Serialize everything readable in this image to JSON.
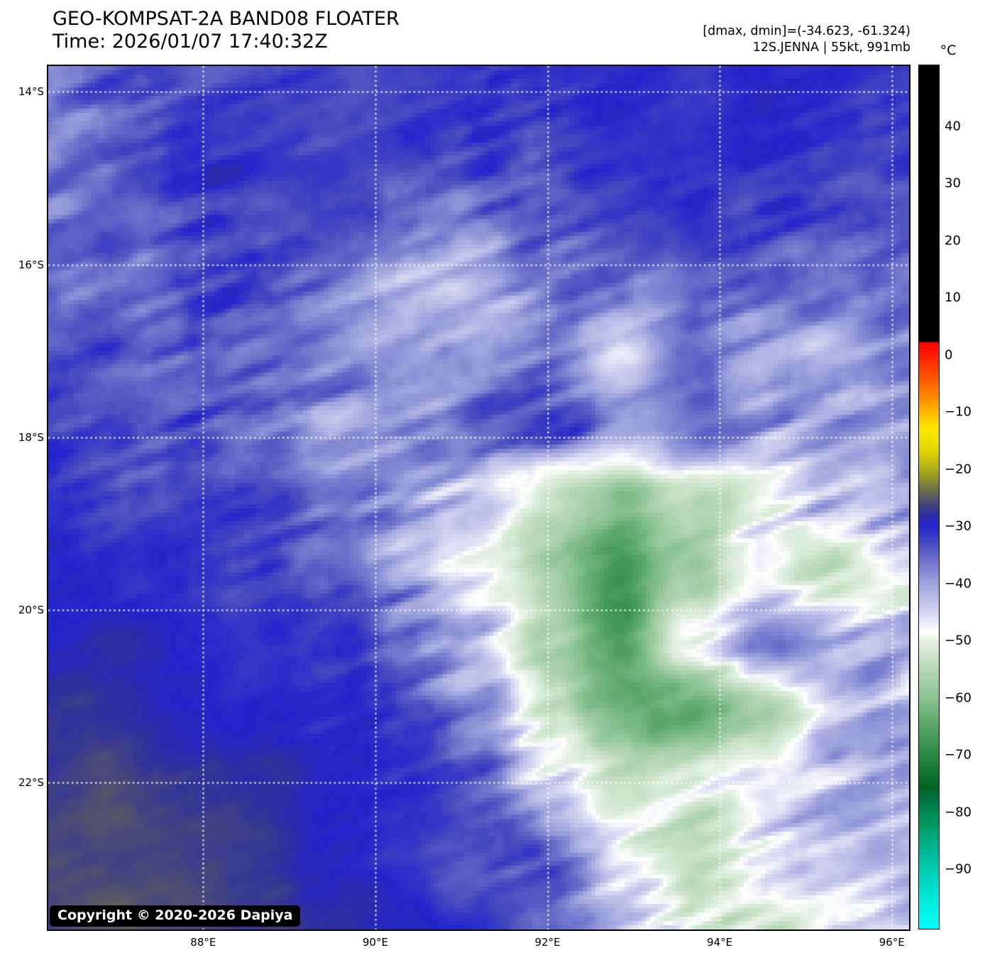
{
  "header": {
    "title": "GEO-KOMPSAT-2A BAND08 FLOATER",
    "time": "Time: 2026/01/07 17:40:32Z",
    "dmax_dmin": "[dmax, dmin]=(-34.623, -61.324)",
    "storm": "12S.JENNA | 55kt, 991mb"
  },
  "copyright": "Copyright © 2020-2026 Dapiya",
  "axes": {
    "lat_range_deg_s": [
      13.7,
      23.7
    ],
    "lon_range_deg_e": [
      86.2,
      96.2
    ],
    "lat_ticks": [
      {
        "deg": 14,
        "label": "14°S"
      },
      {
        "deg": 16,
        "label": "16°S"
      },
      {
        "deg": 18,
        "label": "18°S"
      },
      {
        "deg": 20,
        "label": "20°S"
      },
      {
        "deg": 22,
        "label": "22°S"
      }
    ],
    "lon_ticks": [
      {
        "deg": 88,
        "label": "88°E"
      },
      {
        "deg": 90,
        "label": "90°E"
      },
      {
        "deg": 92,
        "label": "92°E"
      },
      {
        "deg": 94,
        "label": "94°E"
      },
      {
        "deg": 96,
        "label": "96°E"
      }
    ],
    "gridline_color": "#ffffff"
  },
  "colorbar": {
    "unit": "°C",
    "max": 50.5,
    "min": -100.5,
    "ticks": [
      {
        "value": 40,
        "label": "40"
      },
      {
        "value": 30,
        "label": "30"
      },
      {
        "value": 20,
        "label": "20"
      },
      {
        "value": 10,
        "label": "10"
      },
      {
        "value": 0,
        "label": "0"
      },
      {
        "value": -10,
        "label": "−10"
      },
      {
        "value": -20,
        "label": "−20"
      },
      {
        "value": -30,
        "label": "−30"
      },
      {
        "value": -40,
        "label": "−40"
      },
      {
        "value": -50,
        "label": "−50"
      },
      {
        "value": -60,
        "label": "−60"
      },
      {
        "value": -70,
        "label": "−70"
      },
      {
        "value": -80,
        "label": "−80"
      },
      {
        "value": -90,
        "label": "−90"
      }
    ],
    "stops": [
      [
        50.5,
        "#000000"
      ],
      [
        2.2,
        "#000000"
      ],
      [
        2.0,
        "#ff0000"
      ],
      [
        -3,
        "#ff4400"
      ],
      [
        -8,
        "#ff9000"
      ],
      [
        -13,
        "#ffe800"
      ],
      [
        -17,
        "#ded600"
      ],
      [
        -21,
        "#a0a01e"
      ],
      [
        -24,
        "#6a6a50"
      ],
      [
        -26,
        "#4a4a78"
      ],
      [
        -28,
        "#2e2ea0"
      ],
      [
        -30,
        "#2424cd"
      ],
      [
        -33,
        "#464ac0"
      ],
      [
        -36,
        "#6c70ca"
      ],
      [
        -40,
        "#9da1dc"
      ],
      [
        -44,
        "#c6c8ec"
      ],
      [
        -47,
        "#e9eaf7"
      ],
      [
        -48.5,
        "#ffffff"
      ],
      [
        -50,
        "#e7f2e7"
      ],
      [
        -55,
        "#b8d8b8"
      ],
      [
        -60,
        "#8cc394"
      ],
      [
        -65,
        "#57a567"
      ],
      [
        -70,
        "#2b8942"
      ],
      [
        -74,
        "#0c6f2c"
      ],
      [
        -76,
        "#016426"
      ],
      [
        -78,
        "#007548"
      ],
      [
        -82,
        "#00975f"
      ],
      [
        -88,
        "#00c0a0"
      ],
      [
        -94,
        "#00e2d0"
      ],
      [
        -100.5,
        "#00ffff"
      ]
    ]
  },
  "chart_data": {
    "type": "heatmap",
    "title": "GEO-KOMPSAT-2A BAND08 FLOATER",
    "field": "brightness_temperature_c",
    "note": "coarse 13x13 estimate of the IR brightness-temperature field, row-major from map top-left (13.7S/86.2E) to bottom-right (23.7S/96.2E)",
    "rows": 13,
    "cols": 13,
    "values": [
      [
        -36,
        -34,
        -33,
        -33,
        -32,
        -32,
        -33,
        -32,
        -31,
        -31,
        -31,
        -31,
        -32
      ],
      [
        -37,
        -35,
        -33,
        -32,
        -32,
        -32,
        -34,
        -33,
        -31,
        -31,
        -32,
        -33,
        -33
      ],
      [
        -38,
        -36,
        -34,
        -33,
        -33,
        -35,
        -36,
        -34,
        -32,
        -31,
        -33,
        -34,
        -34
      ],
      [
        -36,
        -35,
        -34,
        -34,
        -36,
        -40,
        -41,
        -38,
        -35,
        -33,
        -34,
        -36,
        -35
      ],
      [
        -34,
        -34,
        -35,
        -36,
        -38,
        -41,
        -40,
        -39,
        -45,
        -36,
        -41,
        -40,
        -37
      ],
      [
        -33,
        -34,
        -35,
        -37,
        -40,
        -40,
        -36,
        -34,
        -38,
        -38,
        -43,
        -41,
        -38
      ],
      [
        -32,
        -33,
        -33,
        -35,
        -38,
        -42,
        -44,
        -55,
        -62,
        -55,
        -46,
        -42,
        -40
      ],
      [
        -31,
        -32,
        -32,
        -33,
        -36,
        -42,
        -46,
        -58,
        -66,
        -58,
        -48,
        -53,
        -50
      ],
      [
        -30,
        -29,
        -30,
        -31,
        -33,
        -38,
        -44,
        -56,
        -66,
        -48,
        -35,
        -40,
        -41
      ],
      [
        -28,
        -28,
        -29,
        -30,
        -32,
        -33,
        -40,
        -52,
        -64,
        -64,
        -56,
        -44,
        -42
      ],
      [
        -27,
        -26,
        -27,
        -28,
        -30,
        -32,
        -34,
        -46,
        -54,
        -50,
        -46,
        -44,
        -42
      ],
      [
        -26,
        -26,
        -26,
        -27,
        -29,
        -31,
        -33,
        -34,
        -46,
        -52,
        -46,
        -44,
        -42
      ],
      [
        -26,
        -25,
        -26,
        -27,
        -28,
        -29,
        -31,
        -34,
        -40,
        -48,
        -52,
        -46,
        -44
      ]
    ]
  }
}
